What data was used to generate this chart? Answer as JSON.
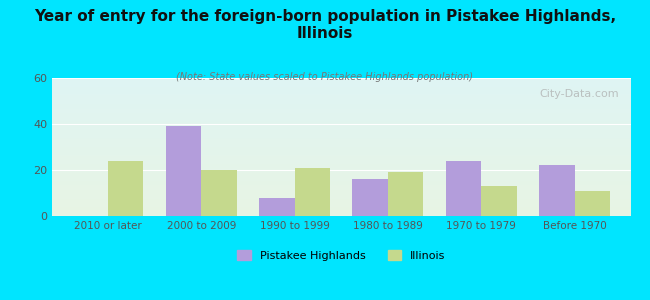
{
  "title": "Year of entry for the foreign-born population in Pistakee Highlands,\nIllinois",
  "subtitle": "(Note: State values scaled to Pistakee Highlands population)",
  "categories": [
    "2010 or later",
    "2000 to 2009",
    "1990 to 1999",
    "1980 to 1989",
    "1970 to 1979",
    "Before 1970"
  ],
  "pistakee_values": [
    0,
    39,
    8,
    16,
    24,
    22
  ],
  "illinois_values": [
    24,
    20,
    21,
    19,
    13,
    11
  ],
  "pistakee_color": "#b39ddb",
  "illinois_color": "#c5d98d",
  "background_outer": "#00e5ff",
  "background_plot_top": "#dff4f4",
  "background_plot_bottom": "#e8f5e4",
  "ylim": [
    0,
    60
  ],
  "yticks": [
    0,
    20,
    40,
    60
  ],
  "bar_width": 0.38,
  "legend_labels": [
    "Pistakee Highlands",
    "Illinois"
  ],
  "watermark": "City-Data.com"
}
